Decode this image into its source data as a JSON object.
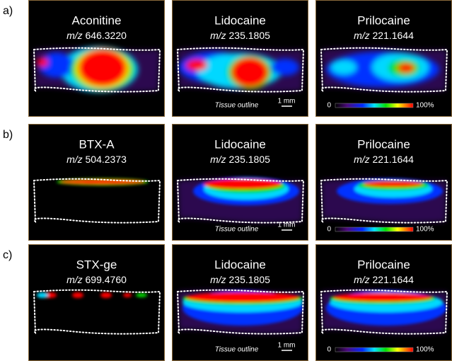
{
  "rows": [
    {
      "label": "a)",
      "panels": [
        {
          "name": "Aconitine",
          "mz_label": "m/z",
          "mz": "646.3220"
        },
        {
          "name": "Lidocaine",
          "mz_label": "m/z",
          "mz": "235.1805",
          "note": "Tissue outline",
          "scale": "1 mm"
        },
        {
          "name": "Prilocaine",
          "mz_label": "m/z",
          "mz": "221.1644",
          "colorbar_min": "0",
          "colorbar_max": "100%"
        }
      ]
    },
    {
      "label": "b)",
      "panels": [
        {
          "name": "BTX-A",
          "mz_label": "m/z",
          "mz": "504.2373"
        },
        {
          "name": "Lidocaine",
          "mz_label": "m/z",
          "mz": "235.1805",
          "note": "Tissue outline",
          "scale": "1 mm"
        },
        {
          "name": "Prilocaine",
          "mz_label": "m/z",
          "mz": "221.1644",
          "colorbar_min": "0",
          "colorbar_max": "100%"
        }
      ]
    },
    {
      "label": "c)",
      "panels": [
        {
          "name": "STX-ge",
          "mz_label": "m/z",
          "mz": "699.4760"
        },
        {
          "name": "Lidocaine",
          "mz_label": "m/z",
          "mz": "235.1805",
          "note": "Tissue outline",
          "scale": "1 mm"
        },
        {
          "name": "Prilocaine",
          "mz_label": "m/z",
          "mz": "221.1644",
          "colorbar_min": "0",
          "colorbar_max": "100%"
        }
      ]
    }
  ]
}
